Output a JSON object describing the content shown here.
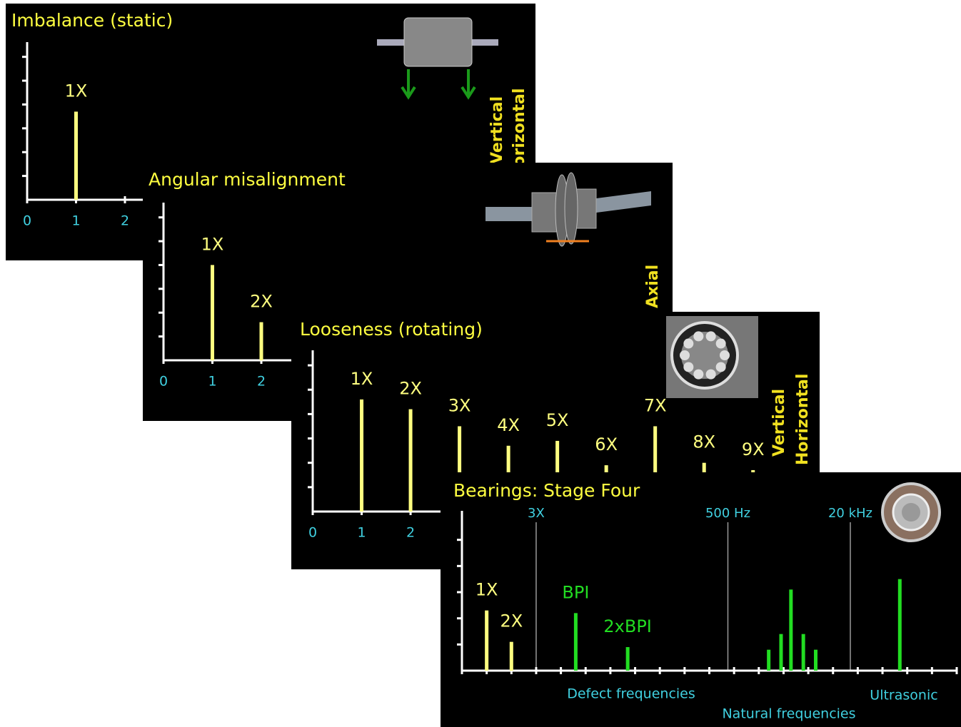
{
  "chart_data": [
    {
      "type": "bar",
      "title": "Imbalance (static)",
      "x": [
        1
      ],
      "values": [
        3.7
      ],
      "peak_labels": [
        "1X"
      ],
      "color": "#ffff80",
      "xlim": [
        0,
        3
      ],
      "xticks": [
        0,
        1,
        2
      ],
      "ylim": [
        0,
        6.5
      ],
      "yticks": [
        1,
        2,
        3,
        4,
        5,
        6
      ],
      "side_labels": [
        "Vertical",
        "Horizontal"
      ]
    },
    {
      "type": "bar",
      "title": "Angular misalignment",
      "x": [
        1,
        2
      ],
      "values": [
        4.0,
        1.6
      ],
      "peak_labels": [
        "1X",
        "2X"
      ],
      "color": "#ffff80",
      "xlim": [
        0,
        3
      ],
      "xticks": [
        0,
        1,
        2
      ],
      "ylim": [
        0,
        6.5
      ],
      "yticks": [
        1,
        2,
        3,
        4,
        5,
        6
      ],
      "side_labels": [
        "Axial"
      ]
    },
    {
      "type": "bar",
      "title": "Looseness (rotating)",
      "x": [
        1,
        2,
        3,
        4,
        5,
        6,
        7,
        8,
        9
      ],
      "values": [
        4.6,
        4.2,
        3.5,
        2.7,
        2.9,
        1.9,
        3.5,
        2.0,
        1.7
      ],
      "peak_labels": [
        "1X",
        "2X",
        "3X",
        "4X",
        "5X",
        "6X",
        "7X",
        "8X",
        "9X"
      ],
      "color": "#ffff80",
      "xlim": [
        0,
        9.5
      ],
      "xticks": [
        0,
        1,
        2
      ],
      "ylim": [
        0,
        6.5
      ],
      "yticks": [
        1,
        2,
        3,
        4,
        5,
        6
      ],
      "side_labels": [
        "Vertical",
        "Horizontal"
      ]
    },
    {
      "type": "bar",
      "title": "Bearings: Stage Four",
      "x": [
        1,
        2,
        4.6,
        6.7,
        12.4,
        12.9,
        13.3,
        13.8,
        14.3,
        17.7
      ],
      "values": [
        2.3,
        1.1,
        2.2,
        0.9,
        0.8,
        1.4,
        3.1,
        1.4,
        0.8,
        3.5
      ],
      "peak_labels": [
        "1X",
        "2X",
        "BPI",
        "2xBPI",
        null,
        null,
        null,
        null,
        null,
        null
      ],
      "colors": [
        "#ffff80",
        "#ffff80",
        "#22dd22",
        "#22dd22",
        "#22dd22",
        "#22dd22",
        "#22dd22",
        "#22dd22",
        "#22dd22",
        "#22dd22"
      ],
      "xlim": [
        0,
        20
      ],
      "xticks": [
        0,
        1,
        2,
        3,
        4,
        5,
        6,
        7,
        8,
        9,
        10,
        11,
        12,
        13,
        14,
        15,
        16,
        17,
        18,
        19,
        20
      ],
      "xtick_labels": false,
      "ylim": [
        0,
        6
      ],
      "yticks": [
        1,
        2,
        3,
        4,
        5
      ],
      "markers": [
        {
          "x": 3,
          "label": "3X"
        },
        {
          "x": 10.75,
          "label": "500 Hz"
        },
        {
          "x": 15.7,
          "label": "20 kHz"
        }
      ],
      "region_labels": [
        "Defect frequencies",
        "Natural frequencies",
        "Ultrasonic"
      ]
    }
  ]
}
